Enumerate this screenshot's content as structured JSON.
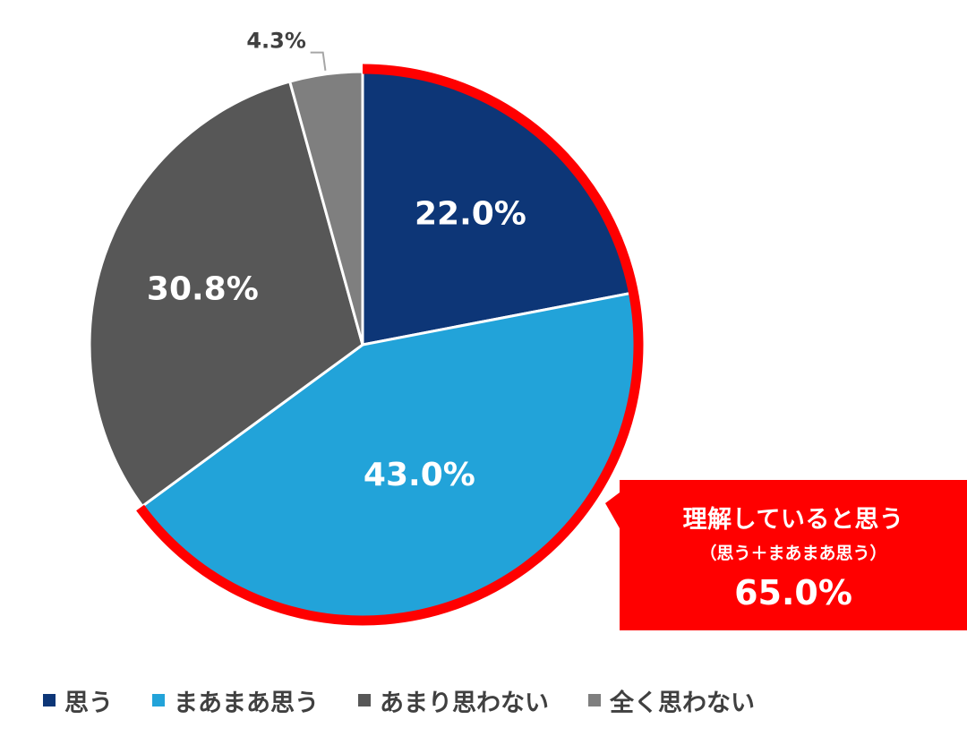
{
  "chart_data": {
    "type": "pie",
    "categories": [
      "思う",
      "まあまあ思う",
      "あまり思わない",
      "全く思わない"
    ],
    "values": [
      22.0,
      43.0,
      30.8,
      4.3
    ],
    "data_labels": [
      "22.0%",
      "43.0%",
      "30.8%",
      "4.3%"
    ],
    "colors": [
      "#0d3677",
      "#22a3d9",
      "#575757",
      "#7f7f7f"
    ],
    "highlight_color": "#ff0000",
    "highlighted_categories": [
      "思う",
      "まあまあ思う"
    ],
    "start_angle": "12 o'clock",
    "direction": "clockwise",
    "legend_position": "bottom"
  },
  "callout": {
    "title": "理解していると思う",
    "subtitle": "（思う＋まあまあ思う）",
    "value": "65.0%"
  },
  "legend": {
    "items": [
      {
        "label": "思う",
        "color": "#0d3677"
      },
      {
        "label": "まあまあ思う",
        "color": "#22a3d9"
      },
      {
        "label": "あまり思わない",
        "color": "#575757"
      },
      {
        "label": "全く思わない",
        "color": "#7f7f7f"
      }
    ]
  }
}
